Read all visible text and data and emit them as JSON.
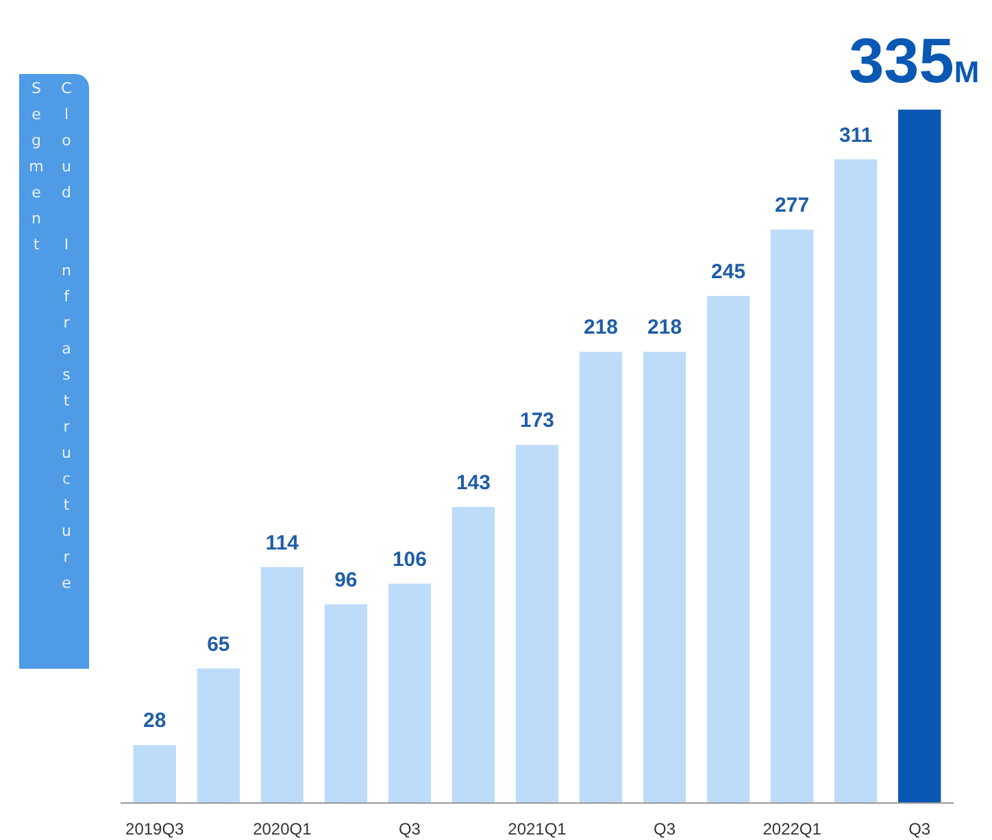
{
  "chart_data": {
    "type": "bar",
    "title": "Cloud Infrastructure Segment",
    "categories": [
      "2019Q3",
      null,
      "2020Q1",
      null,
      "Q3",
      null,
      "2021Q1",
      null,
      "Q3",
      null,
      "2022Q1",
      null,
      "Q3"
    ],
    "values": [
      28,
      65,
      114,
      96,
      106,
      143,
      173,
      218,
      218,
      245,
      277,
      311,
      335
    ],
    "colors": [
      "#bddcfa",
      "#bddcfa",
      "#bddcfa",
      "#bddcfa",
      "#bddcfa",
      "#bddcfa",
      "#bddcfa",
      "#bddcfa",
      "#bddcfa",
      "#bddcfa",
      "#bddcfa",
      "#bddcfa",
      "#0a58b4"
    ],
    "value_labels": [
      "28",
      "65",
      "114",
      "96",
      "106",
      "143",
      "173",
      "218",
      "218",
      "245",
      "277",
      "311",
      "335M"
    ]
  }
}
